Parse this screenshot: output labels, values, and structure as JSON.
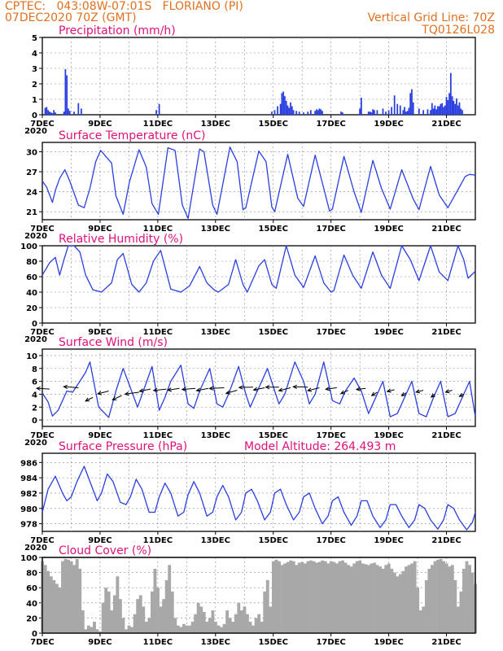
{
  "header": {
    "line1": "CPTEC:   043:08W-07:01S   FLORIANO (PI)",
    "line2": "07DEC2020 70Z (GMT)",
    "grid_note": "Vertical Grid Line: 70Z",
    "run_id": "TQ0126L028"
  },
  "colors": {
    "header": "#e07020",
    "panel_title": "#e0107a",
    "series": "#2a3fe0",
    "cloud": "#a8a8a8",
    "arrow": "#000000",
    "grid": "#888888"
  },
  "x_axis": {
    "start_day": 7,
    "end_day": 22,
    "tick_labels": [
      "7DEC",
      "9DEC",
      "11DEC",
      "13DEC",
      "15DEC",
      "17DEC",
      "19DEC",
      "21DEC"
    ],
    "tick_days": [
      7,
      9,
      11,
      13,
      15,
      17,
      19,
      21
    ],
    "first_label_overlay": "2020"
  },
  "chart_data": [
    {
      "id": "precip",
      "type": "bar",
      "title": "Precipitation (mm/h)",
      "ylim": [
        0,
        5
      ],
      "yticks": [
        0,
        1,
        2,
        3,
        4,
        5
      ],
      "x_unit": "day of December 2020",
      "x": [
        7.1,
        7.15,
        7.2,
        7.25,
        7.3,
        7.35,
        7.4,
        7.45,
        7.75,
        7.8,
        7.85,
        7.9,
        7.95,
        8.1,
        8.25,
        8.35,
        10.95,
        11.05,
        14.95,
        15.05,
        15.15,
        15.25,
        15.3,
        15.35,
        15.4,
        15.45,
        15.5,
        15.55,
        15.6,
        15.65,
        15.7,
        15.8,
        15.9,
        16.05,
        16.2,
        16.3,
        16.45,
        16.5,
        16.55,
        16.6,
        16.65,
        16.7,
        17.35,
        17.4,
        18.0,
        18.05,
        18.3,
        18.35,
        18.4,
        18.45,
        18.5,
        18.6,
        18.8,
        18.9,
        19.0,
        19.1,
        19.2,
        19.3,
        19.4,
        19.5,
        19.55,
        19.6,
        19.65,
        19.7,
        19.75,
        19.8,
        19.85,
        20.05,
        20.2,
        20.35,
        20.45,
        20.5,
        20.55,
        20.6,
        20.65,
        20.7,
        20.75,
        20.8,
        20.85,
        20.9,
        20.95,
        21.0,
        21.05,
        21.1,
        21.15,
        21.2,
        21.25,
        21.3,
        21.35,
        21.4,
        21.45,
        21.5,
        21.55
      ],
      "values": [
        0.45,
        0.5,
        0.3,
        0.2,
        0.15,
        0.1,
        0.3,
        0.15,
        0.2,
        2.95,
        2.55,
        0.4,
        0.25,
        0.2,
        0.75,
        0.4,
        0.3,
        0.7,
        0.2,
        0.3,
        0.55,
        0.7,
        1.4,
        1.5,
        1.2,
        0.9,
        0.6,
        0.45,
        0.8,
        0.55,
        0.3,
        0.25,
        0.2,
        0.15,
        0.2,
        0.3,
        0.25,
        0.35,
        0.3,
        0.4,
        0.35,
        0.25,
        0.2,
        0.15,
        0.4,
        1.1,
        0.2,
        0.2,
        0.15,
        0.35,
        0.3,
        0.3,
        0.4,
        0.2,
        0.3,
        0.5,
        1.25,
        0.7,
        0.6,
        0.3,
        0.5,
        0.2,
        0.25,
        0.45,
        1.4,
        1.65,
        0.8,
        0.4,
        0.3,
        0.35,
        0.3,
        0.75,
        0.4,
        0.6,
        0.35,
        0.55,
        0.55,
        0.7,
        0.75,
        0.5,
        0.6,
        1.15,
        0.95,
        1.4,
        2.7,
        1.2,
        0.9,
        0.7,
        1.05,
        0.6,
        0.8,
        0.4,
        0.3
      ]
    },
    {
      "id": "temp",
      "type": "line",
      "title": "Surface Temperature (nC)",
      "ylim": [
        19.8,
        31.4
      ],
      "yticks": [
        21,
        24,
        27,
        30
      ],
      "x_unit": "day of December 2020",
      "x": [
        7.0,
        7.15,
        7.35,
        7.45,
        7.6,
        7.78,
        7.95,
        8.25,
        8.45,
        8.65,
        8.85,
        9.02,
        9.4,
        9.55,
        9.8,
        10.02,
        10.35,
        10.6,
        10.8,
        11.02,
        11.35,
        11.6,
        11.85,
        12.05,
        12.45,
        12.6,
        12.9,
        13.05,
        13.5,
        13.75,
        13.95,
        14.05,
        14.5,
        14.75,
        14.95,
        15.05,
        15.5,
        15.85,
        16.05,
        16.45,
        16.75,
        16.95,
        17.05,
        17.45,
        17.8,
        18.05,
        18.45,
        18.75,
        19.05,
        19.45,
        19.85,
        20.05,
        20.45,
        20.75,
        21.05,
        21.5,
        21.65,
        21.8,
        22.0
      ],
      "values": [
        25.6,
        24.7,
        22.4,
        24.2,
        26.0,
        27.3,
        25.6,
        22.0,
        21.6,
        24.5,
        28.5,
        30.2,
        28.3,
        23.4,
        20.6,
        25.5,
        30.3,
        27.7,
        22.2,
        20.6,
        30.6,
        30.2,
        22.0,
        20.0,
        30.4,
        30.0,
        22.0,
        20.6,
        30.7,
        28.5,
        21.3,
        21.6,
        30.1,
        28.5,
        21.7,
        21.0,
        29.6,
        23.0,
        21.8,
        29.5,
        24.5,
        21.1,
        21.4,
        29.3,
        24.0,
        20.9,
        28.7,
        24.5,
        21.4,
        27.3,
        22.9,
        21.3,
        27.8,
        23.5,
        21.6,
        25.1,
        26.3,
        26.6,
        26.5
      ]
    },
    {
      "id": "rh",
      "type": "line",
      "title": "Relative Humidity (%)",
      "ylim": [
        0,
        100
      ],
      "yticks": [
        0,
        20,
        40,
        60,
        80,
        100
      ],
      "x_unit": "day of December 2020",
      "x": [
        7.0,
        7.25,
        7.45,
        7.6,
        7.75,
        7.9,
        8.1,
        8.3,
        8.5,
        8.75,
        9.05,
        9.4,
        9.6,
        9.8,
        10.1,
        10.35,
        10.6,
        10.85,
        11.1,
        11.45,
        11.8,
        12.1,
        12.45,
        12.7,
        12.95,
        13.1,
        13.45,
        13.7,
        13.95,
        14.1,
        14.5,
        14.7,
        14.95,
        15.1,
        15.45,
        15.75,
        16.05,
        16.45,
        16.75,
        17.0,
        17.1,
        17.45,
        17.75,
        18.05,
        18.45,
        18.75,
        19.05,
        19.45,
        19.75,
        20.05,
        20.45,
        20.75,
        21.05,
        21.4,
        21.6,
        21.75,
        22.0
      ],
      "values": [
        62,
        78,
        85,
        62,
        82,
        100,
        100,
        92,
        62,
        43,
        40,
        52,
        82,
        90,
        50,
        40,
        52,
        80,
        94,
        44,
        40,
        48,
        73,
        52,
        43,
        40,
        50,
        82,
        50,
        40,
        74,
        82,
        50,
        45,
        100,
        62,
        46,
        87,
        52,
        40,
        42,
        88,
        62,
        45,
        92,
        62,
        45,
        100,
        82,
        55,
        100,
        66,
        55,
        100,
        82,
        58,
        67
      ]
    },
    {
      "id": "wind",
      "type": "line",
      "title": "Surface Wind (m/s)",
      "ylim": [
        -1,
        11
      ],
      "yticks": [
        0,
        2,
        4,
        6,
        8,
        10
      ],
      "x_unit": "day of December 2020",
      "x": [
        7.0,
        7.2,
        7.35,
        7.55,
        7.85,
        8.05,
        8.3,
        8.5,
        8.65,
        8.95,
        9.3,
        9.55,
        9.8,
        10.05,
        10.3,
        10.5,
        10.8,
        11.05,
        11.25,
        11.45,
        11.8,
        12.05,
        12.25,
        12.45,
        12.8,
        13.05,
        13.25,
        13.45,
        13.8,
        14.05,
        14.2,
        14.45,
        14.8,
        15.05,
        15.2,
        15.4,
        15.75,
        16.05,
        16.25,
        16.45,
        16.75,
        17.05,
        17.3,
        17.5,
        17.8,
        18.05,
        18.3,
        18.5,
        18.8,
        19.05,
        19.3,
        19.55,
        19.8,
        20.05,
        20.3,
        20.55,
        20.8,
        21.05,
        21.3,
        21.55,
        21.8,
        22.0
      ],
      "values": [
        4.2,
        2.8,
        0.6,
        1.5,
        4.5,
        4.3,
        6.0,
        7.4,
        9.0,
        2.0,
        0.4,
        4.5,
        8.0,
        5.0,
        2.0,
        4.5,
        8.3,
        1.5,
        3.5,
        6.0,
        8.5,
        2.5,
        1.8,
        4.5,
        8.0,
        2.5,
        2.0,
        4.0,
        8.3,
        4.0,
        2.0,
        4.5,
        8.0,
        4.5,
        2.5,
        4.0,
        9.0,
        6.0,
        2.5,
        4.0,
        9.0,
        3.0,
        2.5,
        4.5,
        6.5,
        4.5,
        1.0,
        3.0,
        6.0,
        0.5,
        1.0,
        3.5,
        6.0,
        1.0,
        0.5,
        3.5,
        6.0,
        0.5,
        1.0,
        3.5,
        6.0,
        0.5
      ],
      "arrows_note": "wind direction arrows",
      "arrow_x": [
        7.25,
        8.25,
        8.75,
        9.3,
        9.75,
        10.35,
        10.75,
        11.3,
        11.75,
        12.3,
        12.75,
        13.3,
        13.75,
        14.3,
        14.7,
        15.2,
        15.6,
        16.2,
        16.6,
        17.2,
        17.6,
        18.2,
        18.6,
        19.2,
        19.6,
        20.2,
        20.6,
        21.2,
        21.6
      ],
      "arrow_y": [
        4.8,
        5.0,
        3.5,
        4.5,
        3.8,
        4.3,
        4.8,
        4.8,
        4.9,
        4.9,
        4.9,
        5.0,
        4.6,
        5.1,
        5.0,
        5.1,
        5.0,
        5.1,
        5.0,
        5.0,
        4.6,
        4.9,
        4.3,
        4.7,
        4.2,
        4.6,
        4.0,
        4.6,
        4.0
      ],
      "arrow_u": [
        -3.5,
        -4.0,
        -2.0,
        -3.0,
        -2.5,
        -3.8,
        -3.0,
        -3.5,
        -3.2,
        -3.6,
        -3.2,
        -4.0,
        -3.0,
        -3.8,
        -3.0,
        -3.6,
        -3.2,
        -4.0,
        -3.2,
        -3.0,
        -2.0,
        -2.5,
        -1.5,
        -2.0,
        -1.2,
        -2.0,
        -1.0,
        -1.8,
        -1.2
      ],
      "arrow_v": [
        0.2,
        0.3,
        -1.0,
        -0.8,
        -1.2,
        -0.5,
        -0.6,
        -0.4,
        -0.5,
        -0.3,
        -0.6,
        -0.2,
        -0.8,
        -0.1,
        -0.6,
        0.0,
        -0.8,
        0.1,
        -0.8,
        -0.4,
        -0.9,
        -0.3,
        -0.9,
        -0.5,
        -0.8,
        -0.5,
        -0.8,
        -0.5,
        -0.6
      ]
    },
    {
      "id": "pressure",
      "type": "line",
      "title": "Surface Pressure (hPa)",
      "subtitle": "Model Altitude: 264.493 m",
      "ylim": [
        977,
        987.2
      ],
      "yticks": [
        978,
        980,
        982,
        984,
        986
      ],
      "x_unit": "day of December 2020",
      "x": [
        7.0,
        7.2,
        7.45,
        7.7,
        7.85,
        8.0,
        8.2,
        8.45,
        8.7,
        8.9,
        9.05,
        9.25,
        9.45,
        9.7,
        9.9,
        10.05,
        10.25,
        10.45,
        10.7,
        10.9,
        11.05,
        11.25,
        11.45,
        11.7,
        11.9,
        12.05,
        12.25,
        12.45,
        12.7,
        12.9,
        13.05,
        13.25,
        13.45,
        13.7,
        13.9,
        14.05,
        14.25,
        14.45,
        14.7,
        14.9,
        15.05,
        15.25,
        15.45,
        15.7,
        15.9,
        16.05,
        16.25,
        16.45,
        16.7,
        16.9,
        17.05,
        17.25,
        17.45,
        17.7,
        17.9,
        18.05,
        18.25,
        18.45,
        18.7,
        18.9,
        19.05,
        19.25,
        19.45,
        19.7,
        19.9,
        20.05,
        20.25,
        20.45,
        20.7,
        20.9,
        21.05,
        21.25,
        21.45,
        21.7,
        21.9,
        22.0
      ],
      "values": [
        979.5,
        982.5,
        984.2,
        982.0,
        981.0,
        981.5,
        983.5,
        985.5,
        983.0,
        981.0,
        982.0,
        984.5,
        983.5,
        980.8,
        980.5,
        981.5,
        983.8,
        982.5,
        979.5,
        979.5,
        981.5,
        983.3,
        982.0,
        979.0,
        979.5,
        981.8,
        983.5,
        982.0,
        979.0,
        979.5,
        981.5,
        983.0,
        981.5,
        978.5,
        979.5,
        982.0,
        982.5,
        981.0,
        978.5,
        979.5,
        982.0,
        982.5,
        980.5,
        978.5,
        979.5,
        981.5,
        982.0,
        980.0,
        978.0,
        979.0,
        981.0,
        981.5,
        979.5,
        977.8,
        979.0,
        981.0,
        981.0,
        979.0,
        977.5,
        978.5,
        980.5,
        980.5,
        979.0,
        977.5,
        978.5,
        980.5,
        980.0,
        978.5,
        977.3,
        978.5,
        980.5,
        980.0,
        978.5,
        977.2,
        978.2,
        979.5
      ]
    },
    {
      "id": "cloud",
      "type": "area",
      "title": "Cloud Cover (%)",
      "ylim": [
        0,
        100
      ],
      "yticks": [
        0,
        20,
        40,
        60,
        80,
        100
      ],
      "x_unit": "day of December 2020",
      "x": [
        7.0,
        7.1,
        7.2,
        7.3,
        7.4,
        7.5,
        7.6,
        7.7,
        7.8,
        7.9,
        8.0,
        8.1,
        8.2,
        8.3,
        8.4,
        8.5,
        8.6,
        8.7,
        8.8,
        8.9,
        9.0,
        9.1,
        9.2,
        9.3,
        9.4,
        9.5,
        9.6,
        9.7,
        9.8,
        9.9,
        10.0,
        10.1,
        10.2,
        10.3,
        10.4,
        10.5,
        10.6,
        10.7,
        10.8,
        10.9,
        11.0,
        11.1,
        11.2,
        11.3,
        11.4,
        11.5,
        11.6,
        11.7,
        11.8,
        11.9,
        12.0,
        12.1,
        12.2,
        12.3,
        12.4,
        12.5,
        12.6,
        12.7,
        12.8,
        12.9,
        13.0,
        13.1,
        13.2,
        13.3,
        13.4,
        13.5,
        13.6,
        13.7,
        13.8,
        13.9,
        14.0,
        14.1,
        14.2,
        14.3,
        14.4,
        14.5,
        14.6,
        14.7,
        14.8,
        14.9,
        15.0,
        15.1,
        15.2,
        15.3,
        15.4,
        15.5,
        15.6,
        15.7,
        15.8,
        15.9,
        16.0,
        16.1,
        16.2,
        16.3,
        16.4,
        16.5,
        16.6,
        16.7,
        16.8,
        16.9,
        17.0,
        17.1,
        17.2,
        17.3,
        17.4,
        17.5,
        17.6,
        17.7,
        17.8,
        17.9,
        18.0,
        18.1,
        18.2,
        18.3,
        18.4,
        18.5,
        18.6,
        18.7,
        18.8,
        18.9,
        19.0,
        19.1,
        19.2,
        19.3,
        19.4,
        19.5,
        19.6,
        19.7,
        19.8,
        19.9,
        20.0,
        20.1,
        20.2,
        20.3,
        20.4,
        20.5,
        20.6,
        20.7,
        20.8,
        20.9,
        21.0,
        21.1,
        21.2,
        21.3,
        21.4,
        21.5,
        21.6,
        21.7,
        21.8,
        21.9,
        22.0
      ],
      "values": [
        95,
        90,
        82,
        75,
        70,
        65,
        60,
        95,
        98,
        97,
        95,
        90,
        98,
        85,
        30,
        5,
        10,
        8,
        15,
        5,
        2,
        40,
        60,
        55,
        30,
        50,
        75,
        45,
        20,
        5,
        10,
        8,
        25,
        45,
        50,
        35,
        15,
        20,
        55,
        85,
        60,
        35,
        45,
        70,
        90,
        55,
        20,
        10,
        8,
        12,
        10,
        10,
        15,
        25,
        40,
        35,
        28,
        15,
        20,
        30,
        15,
        10,
        8,
        12,
        30,
        20,
        15,
        25,
        40,
        30,
        35,
        25,
        15,
        10,
        20,
        25,
        15,
        55,
        70,
        35,
        95,
        97,
        95,
        90,
        92,
        94,
        96,
        95,
        90,
        93,
        94,
        92,
        95,
        96,
        95,
        93,
        94,
        96,
        95,
        92,
        95,
        94,
        92,
        95,
        96,
        93,
        90,
        88,
        92,
        95,
        96,
        92,
        91,
        90,
        92,
        93,
        90,
        88,
        85,
        90,
        92,
        85,
        80,
        75,
        78,
        82,
        88,
        90,
        92,
        95,
        60,
        30,
        35,
        70,
        85,
        90,
        95,
        97,
        98,
        95,
        92,
        88,
        90,
        70,
        35,
        55,
        85,
        95,
        90,
        80,
        65
      ]
    }
  ]
}
